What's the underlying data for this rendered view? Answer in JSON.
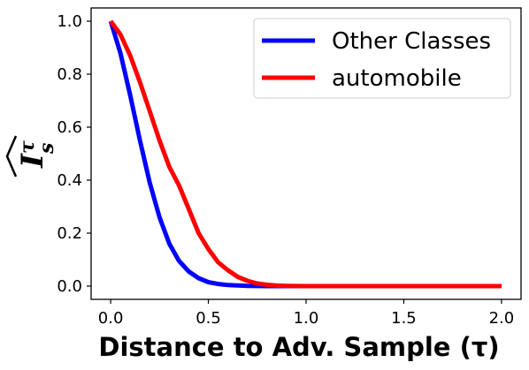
{
  "chart_data": {
    "type": "line",
    "xlabel": "Distance to Adv. Sample (τ)",
    "ylabel": {
      "base": "I",
      "superscript": "τ",
      "subscript": "s"
    },
    "xlim": [
      -0.1,
      2.1
    ],
    "ylim": [
      -0.05,
      1.05
    ],
    "x_ticks": [
      "0.0",
      "0.5",
      "1.0",
      "1.5",
      "2.0"
    ],
    "y_ticks": [
      "0.0",
      "0.2",
      "0.4",
      "0.6",
      "0.8",
      "1.0"
    ],
    "legend_position": "top-right",
    "grid": false,
    "series": [
      {
        "name": "Other Classes",
        "color": "#0000ff",
        "x": [
          0.0,
          0.05,
          0.1,
          0.15,
          0.2,
          0.25,
          0.3,
          0.35,
          0.4,
          0.45,
          0.5,
          0.55,
          0.6,
          0.7,
          0.8,
          0.9,
          1.0,
          1.2,
          1.5,
          2.0
        ],
        "y": [
          1.0,
          0.88,
          0.72,
          0.55,
          0.39,
          0.26,
          0.16,
          0.095,
          0.055,
          0.03,
          0.015,
          0.008,
          0.004,
          0.001,
          0.0,
          0.0,
          0.0,
          0.0,
          0.0,
          0.0
        ]
      },
      {
        "name": "automobile",
        "color": "#ff0000",
        "x": [
          0.0,
          0.05,
          0.1,
          0.15,
          0.2,
          0.25,
          0.3,
          0.35,
          0.4,
          0.45,
          0.5,
          0.55,
          0.6,
          0.65,
          0.7,
          0.75,
          0.8,
          0.85,
          0.9,
          1.0,
          1.2,
          1.5,
          2.0
        ],
        "y": [
          1.0,
          0.95,
          0.87,
          0.77,
          0.66,
          0.55,
          0.45,
          0.38,
          0.29,
          0.2,
          0.14,
          0.09,
          0.06,
          0.035,
          0.02,
          0.01,
          0.005,
          0.002,
          0.001,
          0.0,
          0.0,
          0.0,
          0.0
        ]
      }
    ]
  }
}
